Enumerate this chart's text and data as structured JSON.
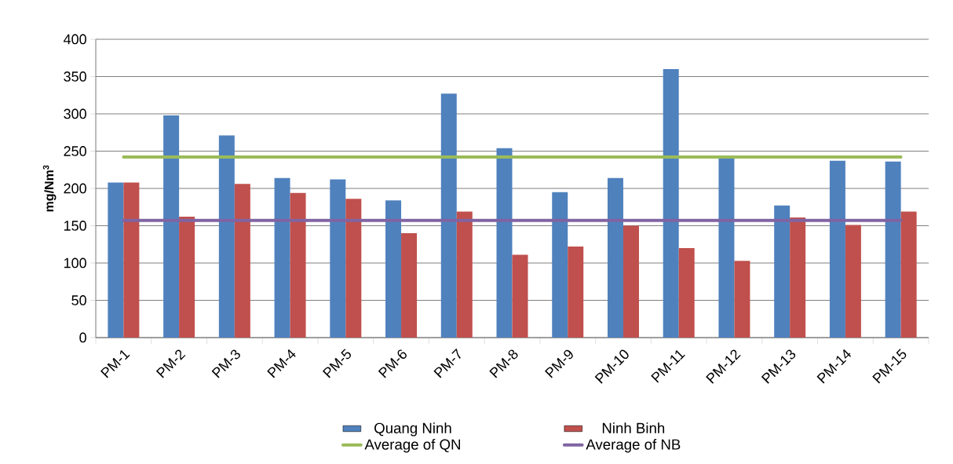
{
  "chart_data": {
    "type": "bar",
    "ylabel": "mg/Nm$^{3}$",
    "categories": [
      "PM-1",
      "PM-2",
      "PM-3",
      "PM-4",
      "PM-5",
      "PM-6",
      "PM-7",
      "PM-8",
      "PM-9",
      "PM-10",
      "PM-11",
      "PM-12",
      "PM-13",
      "PM-14",
      "PM-15"
    ],
    "series": [
      {
        "name": "Quang Ninh",
        "color": "#4f81bd",
        "values": [
          208,
          298,
          271,
          214,
          212,
          184,
          327,
          254,
          195,
          214,
          360,
          240,
          177,
          237,
          236
        ]
      },
      {
        "name": "Ninh Binh",
        "color": "#c0504d",
        "values": [
          208,
          162,
          206,
          194,
          186,
          140,
          169,
          111,
          122,
          150,
          120,
          103,
          161,
          151,
          169
        ]
      },
      {
        "name": "Average of QN",
        "type": "line",
        "color": "#9bbb59",
        "values": [
          242,
          242,
          242,
          242,
          242,
          242,
          242,
          242,
          242,
          242,
          242,
          242,
          242,
          242,
          242
        ]
      },
      {
        "name": "Average of NB",
        "type": "line",
        "color": "#8064a2",
        "values": [
          157,
          157,
          157,
          157,
          157,
          157,
          157,
          157,
          157,
          157,
          157,
          157,
          157,
          157,
          157
        ]
      }
    ],
    "ylim": [
      0,
      400
    ],
    "yticks": [
      0,
      50,
      100,
      150,
      200,
      250,
      300,
      350,
      400
    ],
    "grid": "y",
    "legend": "bottom"
  }
}
